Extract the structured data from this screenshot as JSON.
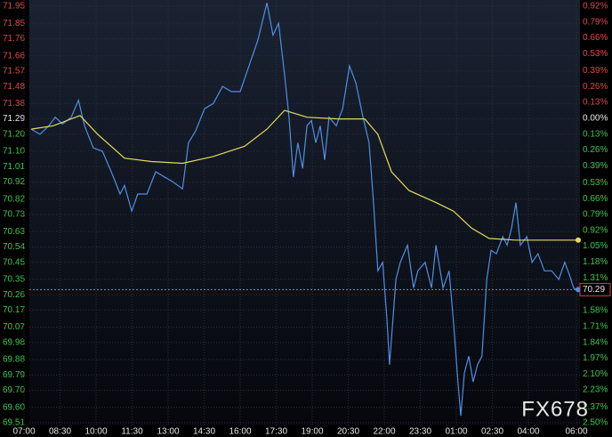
{
  "chart_data": {
    "type": "line",
    "xlim": [
      0,
      1380
    ],
    "xticks": [
      {
        "value": 0,
        "label": "07:00"
      },
      {
        "value": 90,
        "label": "08:30"
      },
      {
        "value": 180,
        "label": "10:00"
      },
      {
        "value": 270,
        "label": "11:30"
      },
      {
        "value": 360,
        "label": "13:00"
      },
      {
        "value": 450,
        "label": "14:30"
      },
      {
        "value": 540,
        "label": "16:00"
      },
      {
        "value": 630,
        "label": "17:30"
      },
      {
        "value": 720,
        "label": "19:00"
      },
      {
        "value": 810,
        "label": "20:30"
      },
      {
        "value": 900,
        "label": "22:00"
      },
      {
        "value": 990,
        "label": "23:30"
      },
      {
        "value": 1080,
        "label": "01:00"
      },
      {
        "value": 1170,
        "label": "02:30"
      },
      {
        "value": 1260,
        "label": "04:00"
      },
      {
        "value": 1380,
        "label": "06:00"
      }
    ],
    "ylim": [
      69.51,
      71.95
    ],
    "yticks": [
      71.95,
      71.85,
      71.76,
      71.66,
      71.57,
      71.48,
      71.38,
      71.29,
      {
        "value": 71.2,
        "label": "71.20"
      },
      {
        "value": 71.1,
        "label": "71.10"
      },
      71.01,
      70.92,
      70.82,
      70.73,
      70.63,
      70.54,
      70.45,
      70.35,
      70.26,
      70.17,
      70.07,
      69.98,
      69.88,
      69.79,
      {
        "value": 69.7,
        "label": "69.70"
      },
      {
        "value": 69.6,
        "label": "69.60"
      },
      69.51
    ],
    "y2lim": [
      -2.5,
      0.92
    ],
    "y2ticks": [
      {
        "value": 0.92,
        "label": "0.92%"
      },
      {
        "value": 0.79,
        "label": "0.79%"
      },
      {
        "value": 0.66,
        "label": "0.66%"
      },
      {
        "value": 0.53,
        "label": "0.53%"
      },
      {
        "value": 0.39,
        "label": "0.39%"
      },
      {
        "value": 0.26,
        "label": "0.26%"
      },
      {
        "value": 0.13,
        "label": "0.13%"
      },
      {
        "value": 0,
        "label": "0.00%"
      },
      {
        "value": -0.13,
        "label": "0.13%"
      },
      {
        "value": -0.26,
        "label": "0.26%"
      },
      {
        "value": -0.39,
        "label": "0.39%"
      },
      {
        "value": -0.53,
        "label": "0.53%"
      },
      {
        "value": -0.66,
        "label": "0.66%"
      },
      {
        "value": -0.79,
        "label": "0.79%"
      },
      {
        "value": -0.92,
        "label": "0.92%"
      },
      {
        "value": -1.05,
        "label": "1.05%"
      },
      {
        "value": -1.18,
        "label": "1.18%"
      },
      {
        "value": -1.31,
        "label": "1.31%"
      },
      {
        "value": -1.44,
        "label": "1.44%"
      },
      {
        "value": -1.58,
        "label": "1.58%"
      },
      {
        "value": -1.71,
        "label": "1.71%"
      },
      {
        "value": -1.84,
        "label": "1.84%"
      },
      {
        "value": -1.97,
        "label": "1.97%"
      },
      {
        "value": -2.1,
        "label": "2.10%"
      },
      {
        "value": -2.23,
        "label": "2.23%"
      },
      {
        "value": -2.37,
        "label": "2.37%"
      },
      {
        "value": -2.5,
        "label": "2.50%"
      }
    ],
    "grid": true,
    "series": [
      {
        "color": "#4f8fe3",
        "x": [
          18,
          40,
          62,
          78,
          96,
          118,
          136,
          151,
          173,
          196,
          218,
          240,
          251,
          269,
          284,
          307,
          329,
          351,
          373,
          396,
          411,
          429,
          451,
          473,
          496,
          518,
          540,
          562,
          584,
          607,
          622,
          636,
          651,
          662,
          673,
          684,
          696,
          707,
          718,
          729,
          740,
          751,
          762,
          780,
          796,
          813,
          829,
          847,
          862,
          873,
          884,
          896,
          907,
          913,
          929,
          940,
          958,
          973,
          984,
          1002,
          1018,
          1029,
          1047,
          1062,
          1073,
          1084,
          1091,
          1100,
          1111,
          1122,
          1133,
          1144,
          1156,
          1167,
          1180,
          1196,
          1207,
          1218,
          1229,
          1240,
          1256,
          1269,
          1284,
          1300,
          1318,
          1336,
          1351,
          1362,
          1373,
          1380
        ],
        "values": [
          71.23,
          71.2,
          71.25,
          71.3,
          71.26,
          71.3,
          71.4,
          71.25,
          71.12,
          71.1,
          70.98,
          70.85,
          70.9,
          70.75,
          70.85,
          70.85,
          70.98,
          70.95,
          70.92,
          70.88,
          71.15,
          71.22,
          71.35,
          71.38,
          71.48,
          71.45,
          71.45,
          71.6,
          71.75,
          71.97,
          71.78,
          71.85,
          71.55,
          71.3,
          70.95,
          71.15,
          71.0,
          71.25,
          71.28,
          71.15,
          71.25,
          71.05,
          71.3,
          71.25,
          71.35,
          71.6,
          71.5,
          71.3,
          71.15,
          70.8,
          70.4,
          70.45,
          70.1,
          69.85,
          70.35,
          70.45,
          70.55,
          70.3,
          70.4,
          70.45,
          70.3,
          70.55,
          70.3,
          70.4,
          70.1,
          69.75,
          69.55,
          69.8,
          69.9,
          69.75,
          69.85,
          69.9,
          70.35,
          70.52,
          70.5,
          70.6,
          70.55,
          70.65,
          70.8,
          70.55,
          70.6,
          70.45,
          70.5,
          70.4,
          70.4,
          70.35,
          70.45,
          70.38,
          70.3,
          70.29
        ]
      },
      {
        "color": "#e3dc5a",
        "x": [
          18,
          73,
          140,
          184,
          251,
          318,
          396,
          473,
          551,
          607,
          651,
          707,
          784,
          851,
          884,
          918,
          962,
          1029,
          1073,
          1118,
          1162,
          1229,
          1318,
          1380
        ],
        "values": [
          71.23,
          71.25,
          71.31,
          71.2,
          71.06,
          71.04,
          71.03,
          71.07,
          71.13,
          71.23,
          71.34,
          71.3,
          71.29,
          71.29,
          71.2,
          70.98,
          70.87,
          70.8,
          70.75,
          70.65,
          70.59,
          70.58,
          70.58,
          70.58
        ]
      }
    ],
    "last_value": 70.29,
    "watermark": "FX678"
  }
}
